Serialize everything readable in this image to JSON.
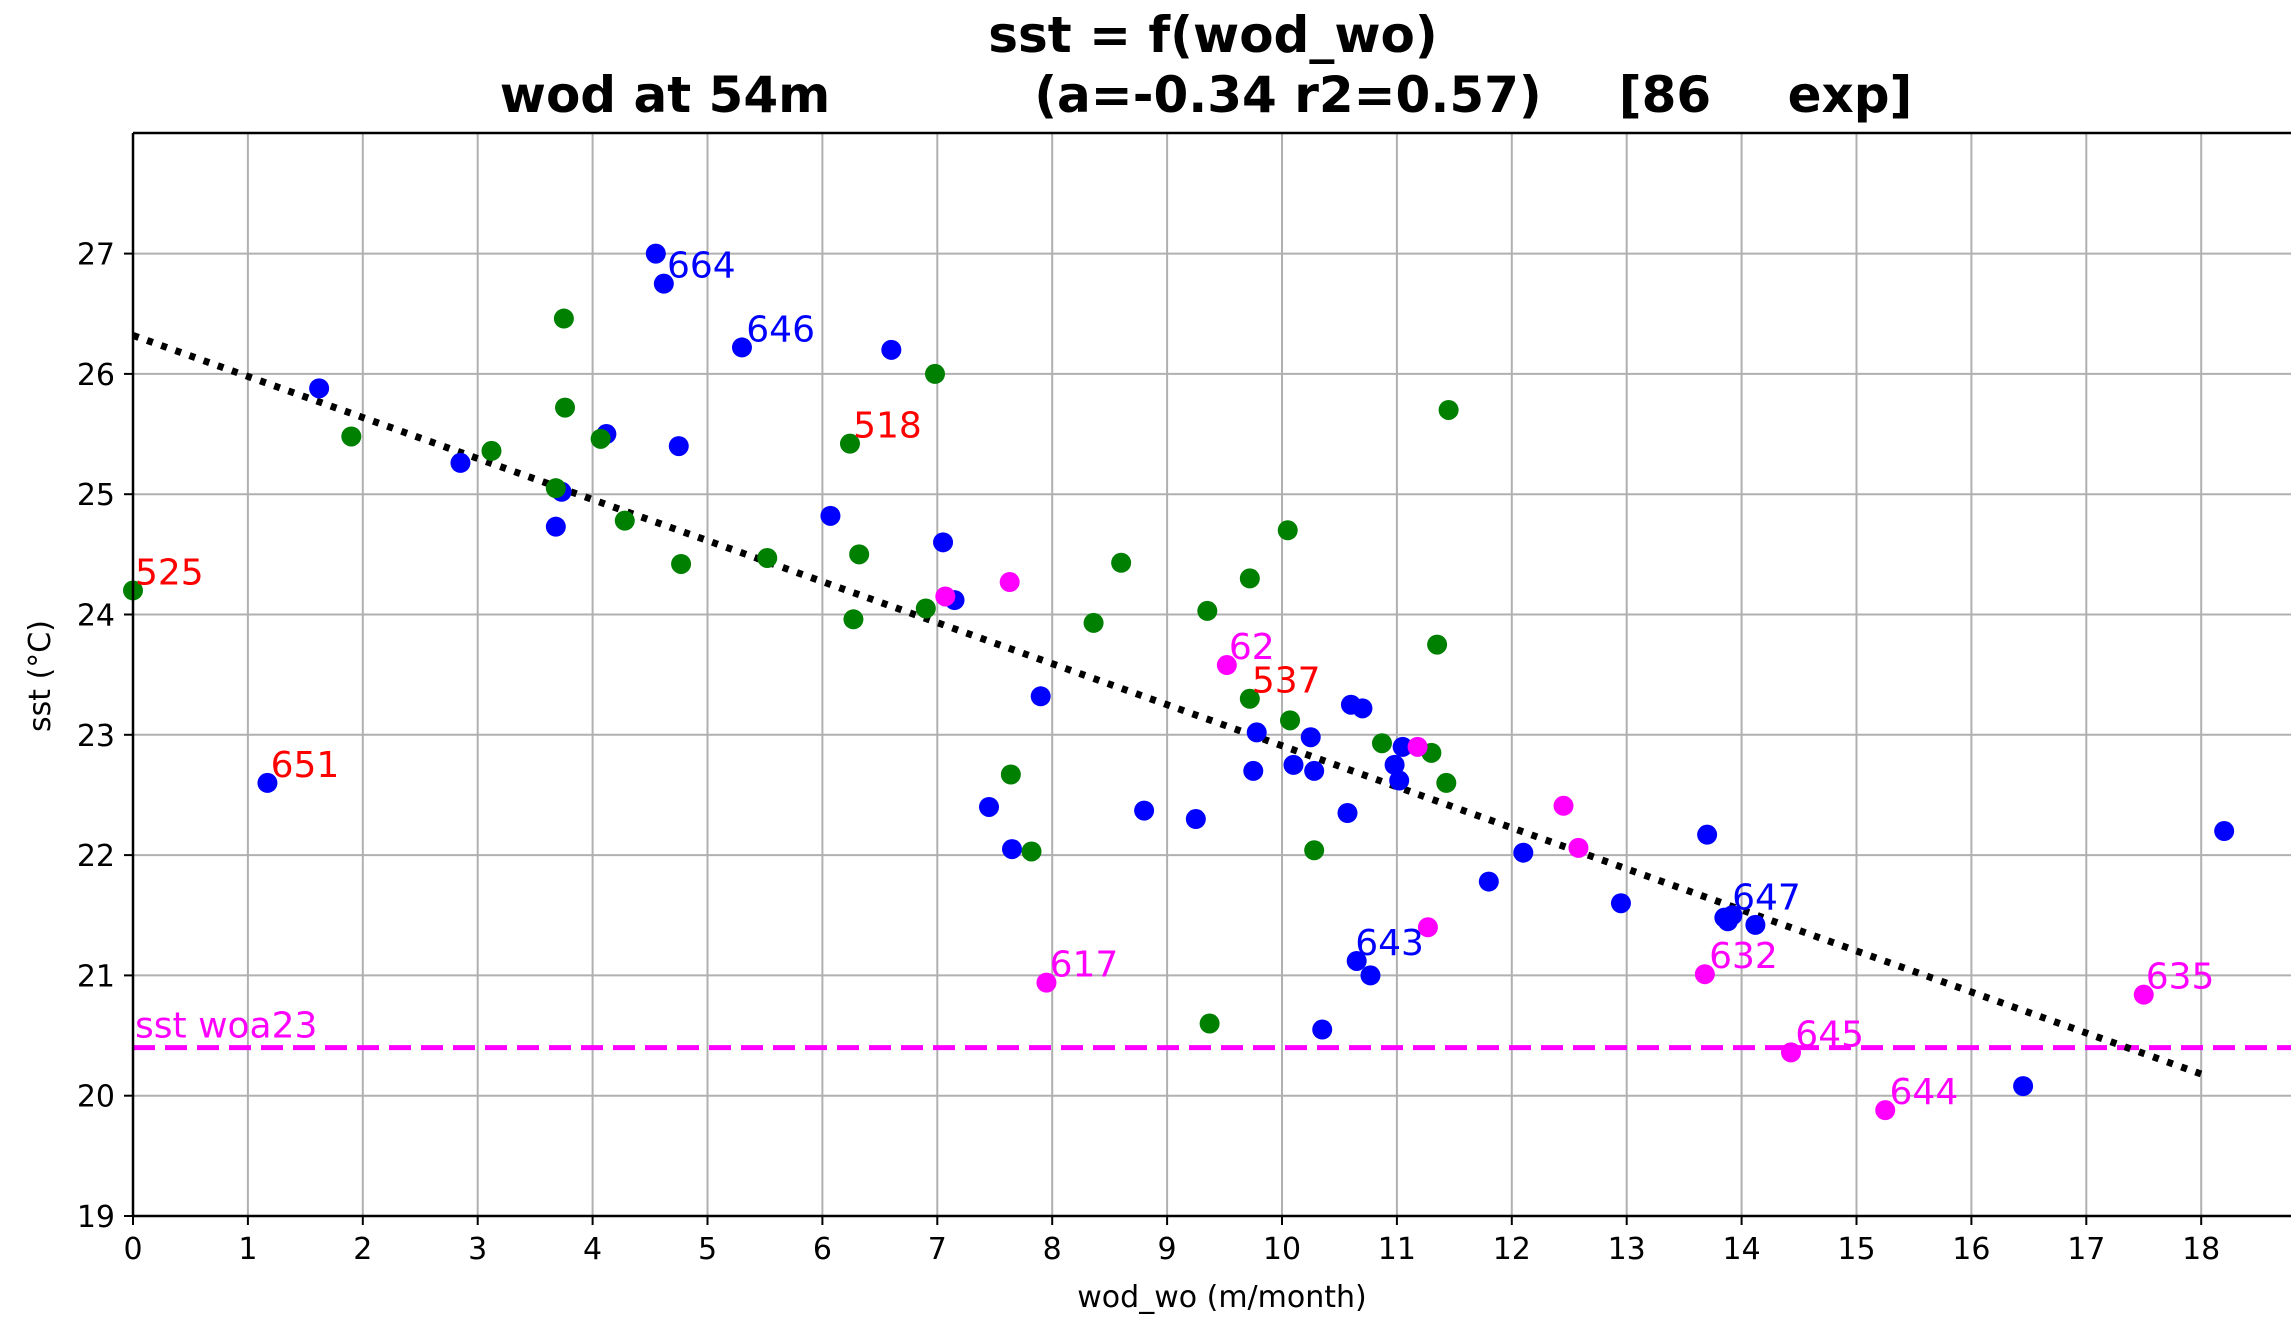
{
  "chart_data": {
    "type": "scatter",
    "title_line1": "sst = f(wod_wo)",
    "title_line2_parts": [
      "wod at 54m",
      "(a=-0.34 r2=0.57)",
      "[86",
      "exp]"
    ],
    "xlabel": "wod_wo (m/month)",
    "ylabel": "sst (°C)",
    "xlim": [
      0,
      18.8
    ],
    "ylim": [
      19,
      28
    ],
    "xticks": [
      "0",
      "1",
      "2",
      "3",
      "4",
      "5",
      "6",
      "7",
      "8",
      "9",
      "10",
      "11",
      "12",
      "13",
      "14",
      "15",
      "16",
      "17",
      "18"
    ],
    "yticks": [
      "19",
      "20",
      "21",
      "22",
      "23",
      "24",
      "25",
      "26",
      "27"
    ],
    "grid": true,
    "colors": {
      "blue": "#0000ff",
      "green": "#008000",
      "magenta": "#ff00ff",
      "red": "#ff0000",
      "black": "#000000",
      "grid": "#b0b0b0"
    },
    "regression": {
      "x": [
        0,
        18.0
      ],
      "y": [
        26.32,
        20.18
      ],
      "style": "dotted"
    },
    "reference_line": {
      "y": 20.4,
      "label": "sst woa23",
      "color": "#ff00ff"
    },
    "series": [
      {
        "color": "blue",
        "points": [
          [
            4.55,
            27.0
          ],
          [
            4.62,
            26.75
          ],
          [
            5.3,
            26.22
          ],
          [
            6.6,
            26.2
          ],
          [
            1.62,
            25.88
          ],
          [
            4.12,
            25.5
          ],
          [
            4.75,
            25.4
          ],
          [
            2.85,
            25.26
          ],
          [
            3.73,
            25.02
          ],
          [
            3.68,
            24.73
          ],
          [
            6.07,
            24.82
          ],
          [
            7.05,
            24.6
          ],
          [
            7.15,
            24.12
          ],
          [
            7.9,
            23.32
          ],
          [
            10.6,
            23.25
          ],
          [
            10.7,
            23.22
          ],
          [
            10.25,
            22.98
          ],
          [
            9.78,
            23.02
          ],
          [
            11.05,
            22.9
          ],
          [
            10.1,
            22.75
          ],
          [
            10.98,
            22.75
          ],
          [
            9.75,
            22.7
          ],
          [
            10.28,
            22.7
          ],
          [
            11.02,
            22.62
          ],
          [
            7.45,
            22.4
          ],
          [
            8.8,
            22.37
          ],
          [
            9.25,
            22.3
          ],
          [
            10.57,
            22.35
          ],
          [
            7.65,
            22.05
          ],
          [
            12.1,
            22.02
          ],
          [
            11.8,
            21.78
          ],
          [
            12.95,
            21.6
          ],
          [
            13.7,
            22.17
          ],
          [
            18.2,
            22.2
          ],
          [
            13.85,
            21.48
          ],
          [
            13.88,
            21.45
          ],
          [
            13.92,
            21.5
          ],
          [
            14.12,
            21.42
          ],
          [
            10.65,
            21.12
          ],
          [
            10.77,
            21.0
          ],
          [
            10.35,
            20.55
          ],
          [
            16.45,
            20.08
          ],
          [
            1.17,
            22.6
          ]
        ]
      },
      {
        "color": "green",
        "points": [
          [
            3.75,
            26.46
          ],
          [
            6.98,
            26.0
          ],
          [
            3.76,
            25.72
          ],
          [
            11.45,
            25.7
          ],
          [
            1.9,
            25.48
          ],
          [
            4.07,
            25.46
          ],
          [
            3.12,
            25.36
          ],
          [
            6.24,
            25.42
          ],
          [
            3.68,
            25.05
          ],
          [
            4.28,
            24.78
          ],
          [
            10.05,
            24.7
          ],
          [
            6.32,
            24.5
          ],
          [
            5.52,
            24.47
          ],
          [
            8.6,
            24.43
          ],
          [
            4.77,
            24.42
          ],
          [
            9.72,
            24.3
          ],
          [
            6.9,
            24.05
          ],
          [
            9.35,
            24.03
          ],
          [
            6.27,
            23.96
          ],
          [
            8.36,
            23.93
          ],
          [
            11.35,
            23.75
          ],
          [
            9.72,
            23.3
          ],
          [
            10.07,
            23.12
          ],
          [
            10.87,
            22.93
          ],
          [
            11.3,
            22.85
          ],
          [
            7.64,
            22.67
          ],
          [
            11.43,
            22.6
          ],
          [
            7.82,
            22.03
          ],
          [
            10.28,
            22.04
          ],
          [
            9.37,
            20.6
          ],
          [
            0.0,
            24.2
          ]
        ]
      },
      {
        "color": "magenta",
        "points": [
          [
            7.63,
            24.27
          ],
          [
            7.07,
            24.15
          ],
          [
            9.52,
            23.58
          ],
          [
            11.18,
            22.9
          ],
          [
            12.45,
            22.41
          ],
          [
            12.58,
            22.06
          ],
          [
            11.27,
            21.4
          ],
          [
            13.68,
            21.01
          ],
          [
            7.95,
            20.94
          ],
          [
            14.43,
            20.36
          ],
          [
            15.25,
            19.88
          ],
          [
            17.5,
            20.84
          ]
        ]
      }
    ],
    "annotations": [
      {
        "text": "664",
        "x": 4.63,
        "y": 26.75,
        "color": "blue"
      },
      {
        "text": "646",
        "x": 5.32,
        "y": 26.22,
        "color": "blue"
      },
      {
        "text": "643",
        "x": 10.62,
        "y": 21.12,
        "color": "blue"
      },
      {
        "text": "647",
        "x": 13.9,
        "y": 21.5,
        "color": "blue"
      },
      {
        "text": "518",
        "x": 6.25,
        "y": 25.42,
        "color": "red"
      },
      {
        "text": "525",
        "x": 0.0,
        "y": 24.2,
        "color": "red"
      },
      {
        "text": "537",
        "x": 9.72,
        "y": 23.3,
        "color": "red"
      },
      {
        "text": "651",
        "x": 1.18,
        "y": 22.6,
        "color": "red"
      },
      {
        "text": "62",
        "x": 9.52,
        "y": 23.58,
        "color": "magenta"
      },
      {
        "text": "617",
        "x": 7.96,
        "y": 20.94,
        "color": "magenta"
      },
      {
        "text": "632",
        "x": 13.7,
        "y": 21.01,
        "color": "magenta"
      },
      {
        "text": "645",
        "x": 14.45,
        "y": 20.36,
        "color": "magenta"
      },
      {
        "text": "644",
        "x": 15.27,
        "y": 19.88,
        "color": "magenta"
      },
      {
        "text": "635",
        "x": 17.5,
        "y": 20.84,
        "color": "magenta"
      }
    ]
  }
}
